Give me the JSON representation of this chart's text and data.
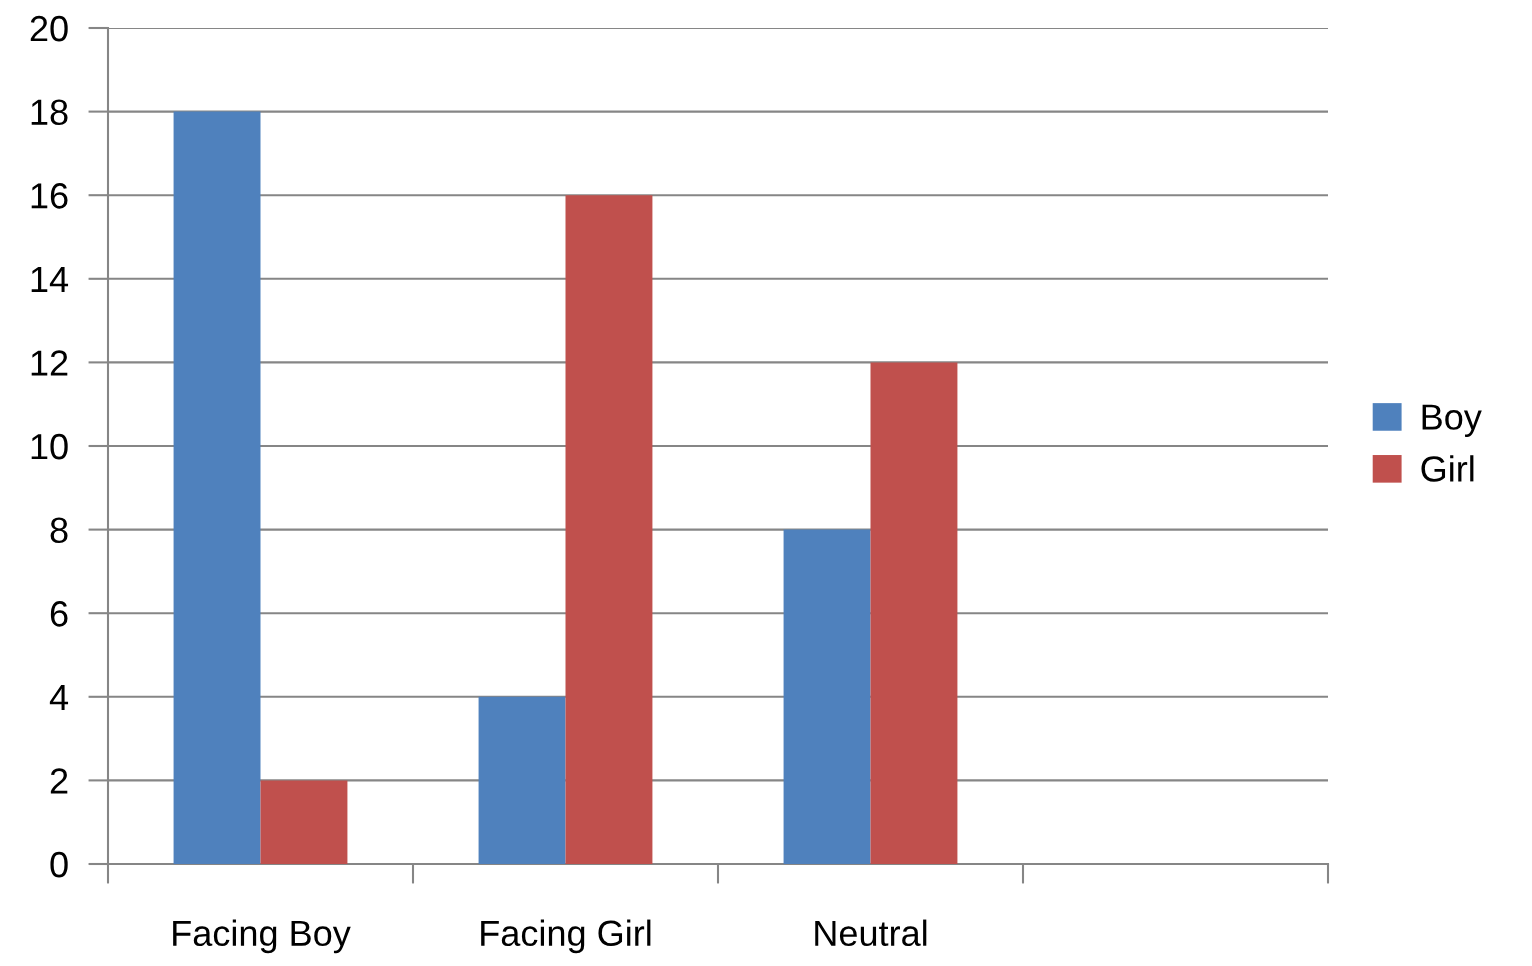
{
  "chart_data": {
    "type": "bar",
    "categories": [
      "Facing Boy",
      "Facing Girl",
      "Neutral",
      null
    ],
    "series": [
      {
        "name": "Boy",
        "color": "#4f81bd",
        "values": [
          18,
          4,
          8,
          null
        ]
      },
      {
        "name": "Girl",
        "color": "#c0504d",
        "values": [
          2,
          16,
          12,
          null
        ]
      }
    ],
    "ylim": [
      0,
      20
    ],
    "yticks": [
      0,
      2,
      4,
      6,
      8,
      10,
      12,
      14,
      16,
      18,
      20
    ],
    "grid": "y",
    "legend": "right"
  }
}
